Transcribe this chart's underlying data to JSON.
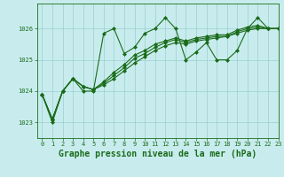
{
  "title": "Graphe pression niveau de la mer (hPa)",
  "background_color": "#c8eced",
  "grid_color": "#90c8c8",
  "line_color": "#1a6b1a",
  "xlim": [
    -0.5,
    23
  ],
  "ylim": [
    1022.5,
    1026.8
  ],
  "yticks": [
    1023,
    1024,
    1025,
    1026
  ],
  "xticks": [
    0,
    1,
    2,
    3,
    4,
    5,
    6,
    7,
    8,
    9,
    10,
    11,
    12,
    13,
    14,
    15,
    16,
    17,
    18,
    19,
    20,
    21,
    22,
    23
  ],
  "series": [
    [
      1023.9,
      1023.0,
      1024.0,
      1024.4,
      1024.0,
      1024.0,
      1025.85,
      1026.0,
      1025.2,
      1025.4,
      1025.85,
      1026.0,
      1026.35,
      1026.0,
      1025.0,
      1025.25,
      1025.55,
      1025.0,
      1025.0,
      1025.3,
      1026.0,
      1026.35,
      1026.0,
      1026.0
    ],
    [
      1023.9,
      1023.1,
      1024.0,
      1024.4,
      1024.15,
      1024.05,
      1024.2,
      1024.4,
      1024.65,
      1024.9,
      1025.1,
      1025.3,
      1025.45,
      1025.55,
      1025.5,
      1025.6,
      1025.65,
      1025.7,
      1025.75,
      1025.85,
      1025.95,
      1026.0,
      1026.0,
      1026.0
    ],
    [
      1023.9,
      1023.1,
      1024.0,
      1024.4,
      1024.15,
      1024.05,
      1024.25,
      1024.5,
      1024.75,
      1025.05,
      1025.2,
      1025.4,
      1025.55,
      1025.65,
      1025.55,
      1025.65,
      1025.7,
      1025.75,
      1025.75,
      1025.9,
      1026.0,
      1026.05,
      1026.0,
      1026.0
    ],
    [
      1023.9,
      1023.1,
      1024.0,
      1024.4,
      1024.15,
      1024.05,
      1024.3,
      1024.6,
      1024.85,
      1025.15,
      1025.3,
      1025.5,
      1025.6,
      1025.7,
      1025.6,
      1025.7,
      1025.75,
      1025.8,
      1025.8,
      1025.95,
      1026.05,
      1026.1,
      1026.0,
      1026.0
    ]
  ],
  "marker": "D",
  "marker_size": 2.0,
  "linewidth": 0.8,
  "xlabel_fontsize": 7,
  "tick_fontsize": 5,
  "tick_labelcolor": "#1a6b1a",
  "figsize": [
    3.2,
    2.0
  ],
  "dpi": 100
}
